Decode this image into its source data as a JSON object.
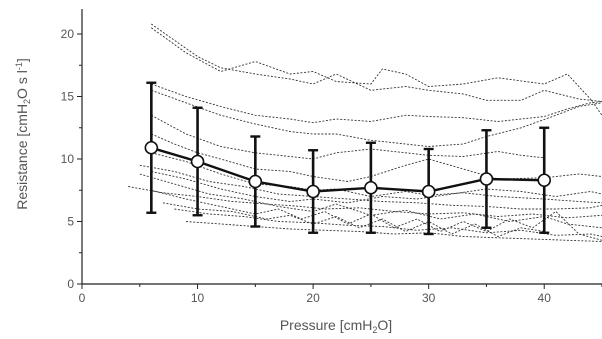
{
  "chart_data": {
    "type": "line",
    "xlabel": {
      "main": "Pressure [cmH",
      "sub": "2",
      "end": "O]"
    },
    "ylabel": {
      "main": "Resistance [cmH",
      "sub": "2",
      "mid": "O s l",
      "sup": "-1",
      "end": "]"
    },
    "xlim": [
      0,
      45
    ],
    "ylim": [
      0,
      22
    ],
    "x_ticks": [
      0,
      10,
      20,
      30,
      40
    ],
    "y_ticks": [
      0,
      5,
      10,
      15,
      20
    ],
    "grid": false,
    "legend": "none",
    "series": [
      {
        "x": [
          6,
          8,
          10,
          12,
          15,
          18,
          20,
          22,
          25,
          28,
          30,
          33,
          35,
          38,
          40,
          43,
          45
        ],
        "y": [
          20.8,
          19.5,
          18.2,
          17.3,
          16.8,
          16.4,
          16.0,
          16.8,
          15.5,
          15.8,
          15.5,
          15.2,
          14.7,
          14.7,
          15.5,
          14.8,
          14.6
        ]
      },
      {
        "x": [
          6,
          9,
          12,
          15,
          18,
          20,
          22,
          25,
          26,
          28,
          30,
          33,
          36,
          40,
          42,
          44,
          45
        ],
        "y": [
          20.5,
          18.5,
          17.0,
          17.8,
          16.8,
          17.0,
          16.2,
          16.0,
          17.2,
          16.8,
          15.8,
          16.0,
          16.5,
          16.0,
          16.8,
          14.8,
          13.5
        ]
      },
      {
        "x": [
          6,
          9,
          12,
          15,
          18,
          20,
          22,
          25,
          28,
          30,
          33,
          36,
          40,
          42,
          44,
          45
        ],
        "y": [
          16.0,
          15.0,
          14.2,
          13.5,
          13.2,
          12.9,
          13.2,
          13.0,
          13.5,
          13.4,
          13.3,
          13.0,
          13.4,
          14.0,
          14.5,
          14.6
        ]
      },
      {
        "x": [
          6,
          9,
          12,
          15,
          18,
          20,
          22,
          25,
          28,
          30,
          33,
          35,
          38,
          41,
          43,
          45
        ],
        "y": [
          15.5,
          14.5,
          13.5,
          12.8,
          12.2,
          12.0,
          12.0,
          11.5,
          11.2,
          11.0,
          11.2,
          11.8,
          12.5,
          13.5,
          14.2,
          14.5
        ]
      },
      {
        "x": [
          6,
          9,
          12,
          15,
          18,
          20,
          22,
          25,
          28,
          30,
          33,
          36,
          38,
          40
        ],
        "y": [
          13.5,
          12.0,
          11.0,
          10.5,
          10.2,
          10.0,
          10.5,
          10.8,
          10.5,
          10.3,
          10.2,
          10.6,
          10.3,
          10.1
        ]
      },
      {
        "x": [
          6,
          8,
          10,
          12,
          15,
          18,
          20,
          23,
          25,
          28,
          30,
          33,
          36,
          40,
          43,
          45
        ],
        "y": [
          12.0,
          11.2,
          10.5,
          10.0,
          9.2,
          9.0,
          8.6,
          8.2,
          8.6,
          9.5,
          10.0,
          9.2,
          8.4,
          8.5,
          8.8,
          8.6
        ]
      },
      {
        "x": [
          6,
          9,
          12,
          15,
          18,
          20,
          22,
          25,
          28,
          30,
          33,
          36,
          40,
          43,
          45
        ],
        "y": [
          10.5,
          9.8,
          8.8,
          8.0,
          7.8,
          7.5,
          7.6,
          7.0,
          7.4,
          7.1,
          7.3,
          7.0,
          6.8,
          6.6,
          6.5
        ]
      },
      {
        "x": [
          5,
          8,
          11,
          14,
          17,
          20,
          23,
          26,
          29,
          32,
          35,
          38,
          41,
          44,
          45
        ],
        "y": [
          9.5,
          9.0,
          8.2,
          7.8,
          7.2,
          7.0,
          6.8,
          6.6,
          6.5,
          6.3,
          6.2,
          6.0,
          6.0,
          6.1,
          6.3
        ]
      },
      {
        "x": [
          4,
          7,
          10,
          13,
          16,
          19,
          21,
          24,
          27,
          30,
          33,
          36,
          39,
          42,
          45
        ],
        "y": [
          7.8,
          7.3,
          7.0,
          6.6,
          6.4,
          6.2,
          6.0,
          6.1,
          5.8,
          5.6,
          5.7,
          5.4,
          5.6,
          5.3,
          5.5
        ]
      },
      {
        "x": [
          5,
          8,
          11,
          14,
          17,
          20,
          22,
          25,
          28,
          31,
          34,
          37,
          40,
          42,
          45
        ],
        "y": [
          8.8,
          8.0,
          7.2,
          6.8,
          6.2,
          5.8,
          6.4,
          5.5,
          5.9,
          5.2,
          5.6,
          5.0,
          5.4,
          4.8,
          4.5
        ]
      },
      {
        "x": [
          6,
          9,
          12,
          15,
          17,
          19,
          21,
          23,
          25,
          27,
          29,
          31,
          33,
          35,
          37,
          39,
          41,
          43,
          45
        ],
        "y": [
          7.5,
          6.8,
          6.2,
          5.6,
          6.0,
          5.2,
          5.8,
          4.8,
          5.6,
          4.5,
          5.2,
          4.2,
          5.0,
          4.2,
          5.2,
          4.5,
          5.8,
          4.0,
          3.5
        ]
      },
      {
        "x": [
          7,
          10,
          13,
          16,
          18,
          20,
          22,
          24,
          26,
          28,
          30,
          32,
          34,
          36,
          38,
          40
        ],
        "y": [
          6.5,
          6.0,
          5.8,
          5.2,
          5.5,
          4.8,
          5.4,
          4.5,
          5.2,
          4.2,
          5.0,
          4.0,
          4.8,
          3.8,
          4.5,
          4.2
        ]
      },
      {
        "x": [
          8,
          11,
          14,
          17,
          20,
          23,
          26,
          29,
          32,
          35,
          38,
          41,
          44,
          45
        ],
        "y": [
          6.0,
          5.6,
          5.4,
          5.0,
          4.9,
          4.7,
          4.6,
          4.3,
          4.5,
          4.1,
          4.3,
          3.9,
          4.0,
          3.8
        ]
      },
      {
        "x": [
          9,
          12,
          15,
          18,
          21,
          24,
          27,
          30,
          33,
          36,
          39,
          42,
          45
        ],
        "y": [
          5.0,
          4.8,
          4.6,
          4.4,
          4.3,
          4.2,
          4.0,
          4.1,
          3.8,
          3.7,
          3.6,
          3.5,
          3.4
        ]
      },
      {
        "x": [
          6,
          9,
          12,
          15,
          18,
          20,
          23,
          26,
          29,
          32,
          35,
          38,
          41,
          44,
          45
        ],
        "y": [
          9.0,
          8.4,
          7.6,
          7.0,
          6.6,
          6.8,
          6.5,
          7.0,
          6.8,
          7.2,
          7.6,
          7.4,
          7.0,
          7.4,
          7.2
        ]
      }
    ],
    "mean": {
      "x": [
        6,
        10,
        15,
        20,
        25,
        30,
        35,
        40
      ],
      "y": [
        10.9,
        9.8,
        8.2,
        7.4,
        7.7,
        7.4,
        8.4,
        8.3
      ],
      "err": [
        5.2,
        4.3,
        3.6,
        3.3,
        3.6,
        3.4,
        3.9,
        4.2
      ]
    }
  }
}
